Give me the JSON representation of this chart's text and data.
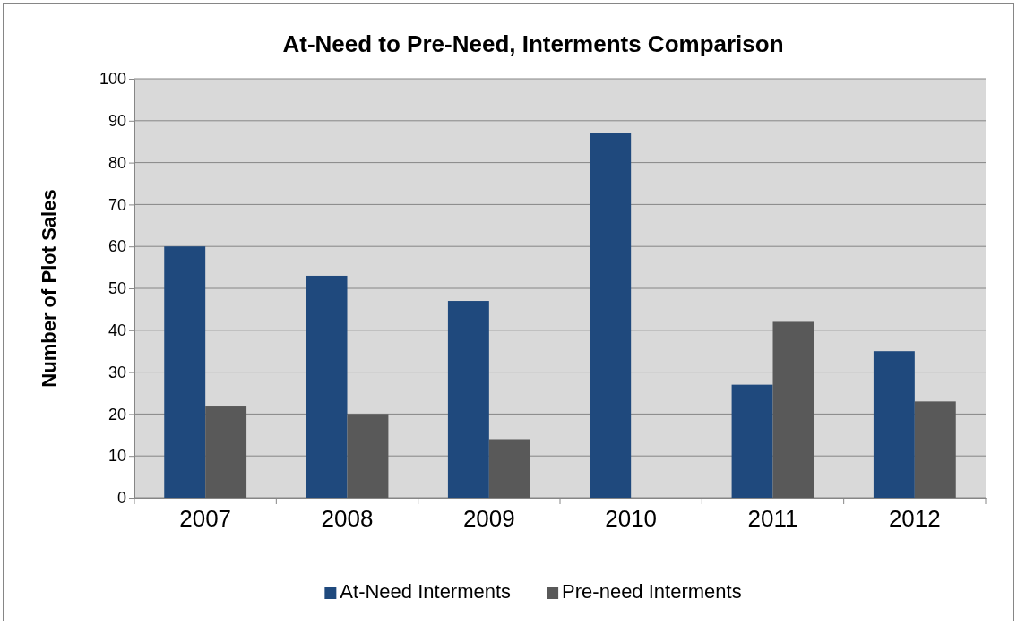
{
  "chart_data": {
    "type": "bar",
    "title": "At-Need to Pre-Need, Interments Comparison",
    "ylabel": "Number of Plot Sales",
    "categories": [
      "2007",
      "2008",
      "2009",
      "2010",
      "2011",
      "2012"
    ],
    "series": [
      {
        "name": "At-Need Interments",
        "color": "#1f497d",
        "values": [
          60,
          53,
          47,
          87,
          27,
          35
        ]
      },
      {
        "name": "Pre-need Interments",
        "color": "#595959",
        "values": [
          22,
          20,
          14,
          null,
          42,
          23
        ]
      }
    ],
    "ylim": [
      0,
      100
    ],
    "yticks": [
      0,
      10,
      20,
      30,
      40,
      50,
      60,
      70,
      80,
      90,
      100
    ],
    "grid": "y",
    "legend": "bottom"
  }
}
